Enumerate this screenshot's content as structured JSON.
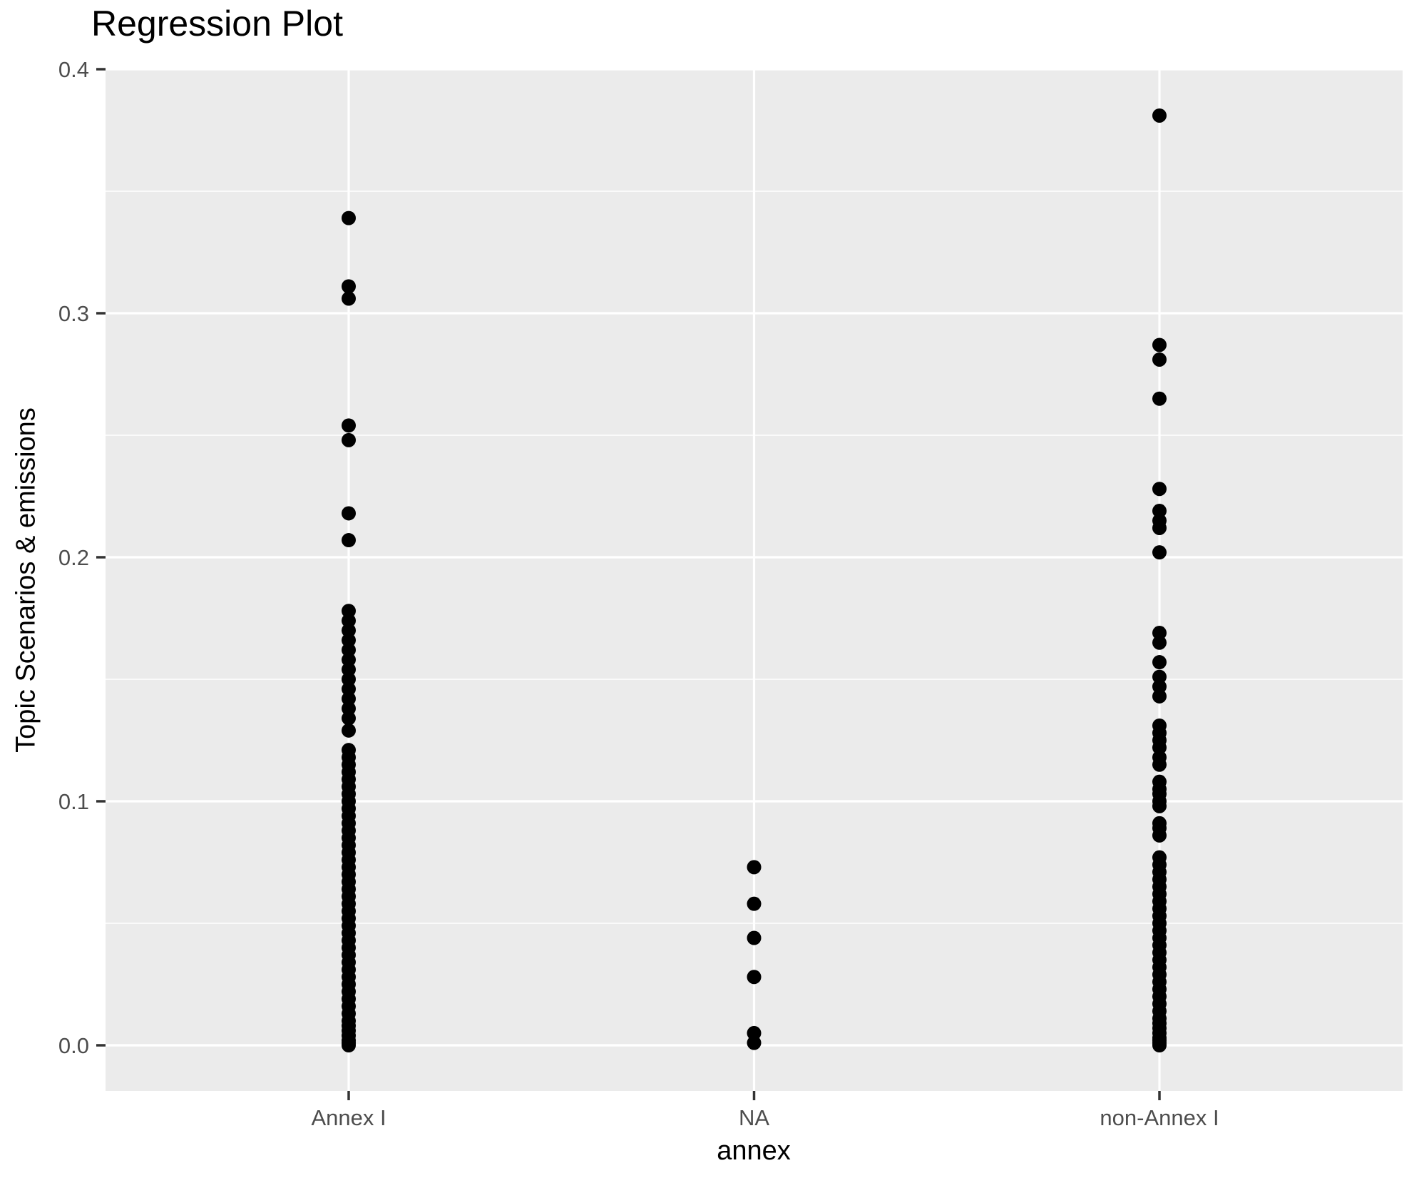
{
  "title": "Regression Plot",
  "style": {
    "panel_bg": "#EBEBEB",
    "grid_color": "#FFFFFF",
    "point_color": "#000000",
    "tick_label_color": "#4D4D4D",
    "tick_mark_color": "#333333",
    "axis_title_color": "#000000"
  },
  "y_axis": {
    "tick_labels": [
      "0.0",
      "0.1",
      "0.2",
      "0.3",
      "0.4"
    ],
    "tick_values": [
      0.0,
      0.1,
      0.2,
      0.3,
      0.4
    ],
    "minor_tick_values": [
      0.05,
      0.15,
      0.25,
      0.35
    ]
  },
  "chart_data": {
    "type": "scatter",
    "title": "Regression Plot",
    "xlabel": "annex",
    "ylabel": "Topic Scenarios & emissions",
    "categories": [
      "Annex I",
      "NA",
      "non-Annex I"
    ],
    "ylim": [
      -0.019,
      0.4
    ],
    "grid": true,
    "legend": false,
    "series": [
      {
        "name": "Annex I",
        "values": [
          0.339,
          0.311,
          0.306,
          0.254,
          0.248,
          0.218,
          0.207,
          0.178,
          0.174,
          0.17,
          0.166,
          0.162,
          0.158,
          0.154,
          0.15,
          0.146,
          0.142,
          0.138,
          0.134,
          0.129,
          0.121,
          0.118,
          0.115,
          0.112,
          0.109,
          0.106,
          0.103,
          0.1,
          0.097,
          0.094,
          0.091,
          0.088,
          0.085,
          0.082,
          0.079,
          0.076,
          0.073,
          0.07,
          0.067,
          0.064,
          0.061,
          0.058,
          0.055,
          0.052,
          0.049,
          0.046,
          0.043,
          0.04,
          0.037,
          0.034,
          0.031,
          0.028,
          0.025,
          0.022,
          0.019,
          0.016,
          0.013,
          0.01,
          0.008,
          0.006,
          0.004,
          0.002,
          0.001,
          0.0
        ]
      },
      {
        "name": "NA",
        "values": [
          0.073,
          0.058,
          0.044,
          0.028,
          0.005,
          0.001
        ]
      },
      {
        "name": "non-Annex I",
        "values": [
          0.381,
          0.287,
          0.281,
          0.265,
          0.228,
          0.219,
          0.215,
          0.212,
          0.202,
          0.169,
          0.165,
          0.157,
          0.151,
          0.147,
          0.143,
          0.131,
          0.128,
          0.125,
          0.122,
          0.118,
          0.115,
          0.108,
          0.105,
          0.103,
          0.1,
          0.098,
          0.091,
          0.089,
          0.086,
          0.077,
          0.074,
          0.071,
          0.068,
          0.065,
          0.062,
          0.059,
          0.056,
          0.053,
          0.05,
          0.047,
          0.044,
          0.041,
          0.038,
          0.035,
          0.032,
          0.029,
          0.026,
          0.023,
          0.02,
          0.017,
          0.014,
          0.011,
          0.009,
          0.007,
          0.005,
          0.003,
          0.002,
          0.001,
          0.0
        ]
      }
    ]
  }
}
